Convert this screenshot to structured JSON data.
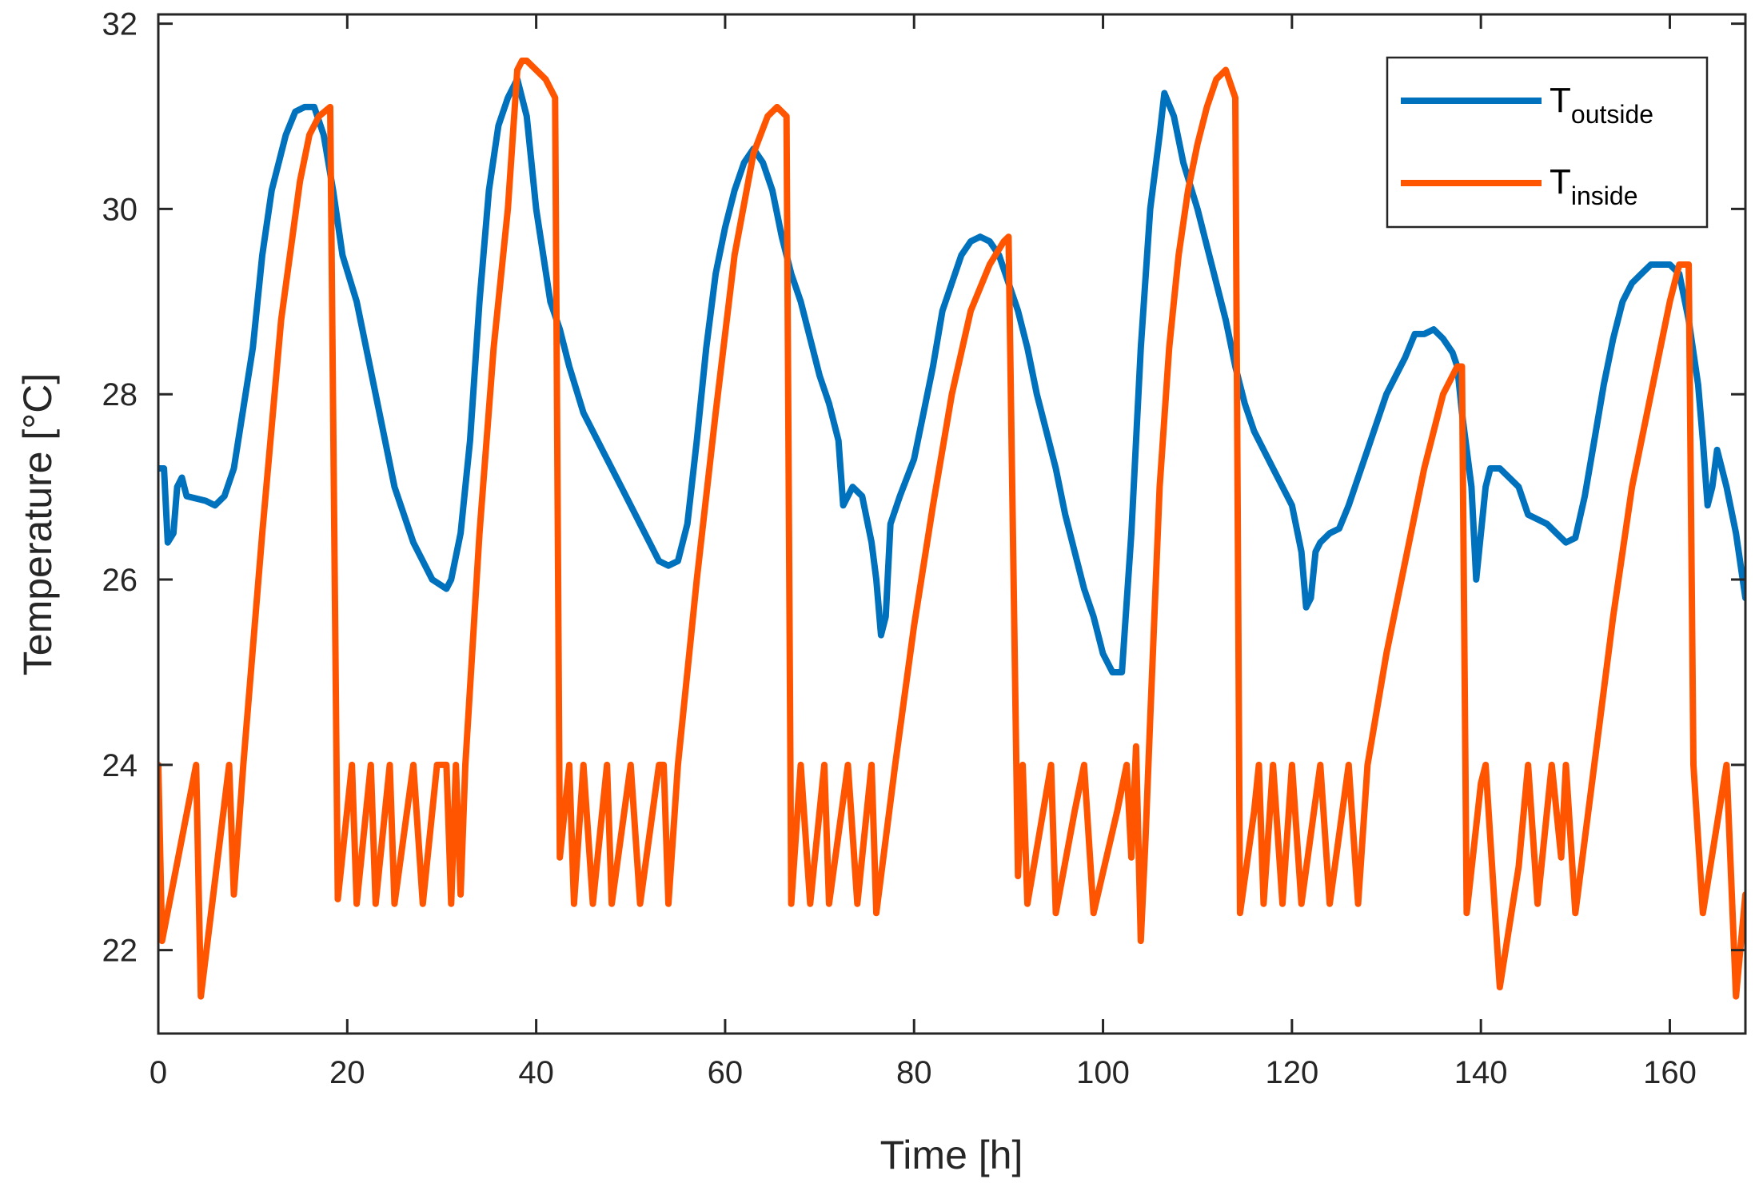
{
  "chart_data": {
    "type": "line",
    "title": "",
    "xlabel": "Time [h]",
    "ylabel": "Temperature [°C]",
    "xlim": [
      0,
      168
    ],
    "ylim": [
      21.1,
      32.1
    ],
    "xticks": [
      0,
      20,
      40,
      60,
      80,
      100,
      120,
      140,
      160
    ],
    "yticks": [
      22,
      24,
      26,
      28,
      30,
      32
    ],
    "grid": false,
    "legend_position": "top-right",
    "series": [
      {
        "name": "T_outside",
        "legend_main": "T",
        "legend_sub": "outside",
        "color": "#0072BD",
        "points": [
          [
            0,
            27.2
          ],
          [
            0.6,
            27.2
          ],
          [
            1,
            26.4
          ],
          [
            1.6,
            26.5
          ],
          [
            2,
            27.0
          ],
          [
            2.5,
            27.1
          ],
          [
            3,
            26.9
          ],
          [
            5,
            26.85
          ],
          [
            6,
            26.8
          ],
          [
            7,
            26.9
          ],
          [
            8,
            27.2
          ],
          [
            10,
            28.5
          ],
          [
            11,
            29.5
          ],
          [
            12,
            30.2
          ],
          [
            13.5,
            30.8
          ],
          [
            14.5,
            31.05
          ],
          [
            15.5,
            31.1
          ],
          [
            16.5,
            31.1
          ],
          [
            17.5,
            30.8
          ],
          [
            18.5,
            30.2
          ],
          [
            19.5,
            29.5
          ],
          [
            21,
            29.0
          ],
          [
            23,
            28.0
          ],
          [
            25,
            27.0
          ],
          [
            27,
            26.4
          ],
          [
            29,
            26.0
          ],
          [
            30.5,
            25.9
          ],
          [
            31,
            26.0
          ],
          [
            32,
            26.5
          ],
          [
            33,
            27.5
          ],
          [
            34,
            29.0
          ],
          [
            35,
            30.2
          ],
          [
            36,
            30.9
          ],
          [
            37,
            31.2
          ],
          [
            38,
            31.4
          ],
          [
            39,
            31.0
          ],
          [
            40,
            30.0
          ],
          [
            41.5,
            29.0
          ],
          [
            42.5,
            28.7
          ],
          [
            43.5,
            28.3
          ],
          [
            45,
            27.8
          ],
          [
            47,
            27.4
          ],
          [
            49,
            27.0
          ],
          [
            51,
            26.6
          ],
          [
            52,
            26.4
          ],
          [
            53,
            26.2
          ],
          [
            54,
            26.15
          ],
          [
            55,
            26.2
          ],
          [
            56,
            26.6
          ],
          [
            57,
            27.5
          ],
          [
            58,
            28.5
          ],
          [
            59,
            29.3
          ],
          [
            60,
            29.8
          ],
          [
            61,
            30.2
          ],
          [
            62,
            30.5
          ],
          [
            63,
            30.65
          ],
          [
            64,
            30.5
          ],
          [
            65,
            30.2
          ],
          [
            66,
            29.7
          ],
          [
            67,
            29.3
          ],
          [
            68,
            29.0
          ],
          [
            69,
            28.6
          ],
          [
            70,
            28.2
          ],
          [
            71,
            27.9
          ],
          [
            72,
            27.5
          ],
          [
            72.5,
            26.8
          ],
          [
            73.5,
            27.0
          ],
          [
            74.5,
            26.9
          ],
          [
            75.5,
            26.4
          ],
          [
            76,
            26.0
          ],
          [
            76.5,
            25.4
          ],
          [
            77,
            25.6
          ],
          [
            77.5,
            26.6
          ],
          [
            78.5,
            26.9
          ],
          [
            80,
            27.3
          ],
          [
            81,
            27.8
          ],
          [
            82,
            28.3
          ],
          [
            83,
            28.9
          ],
          [
            84,
            29.2
          ],
          [
            85,
            29.5
          ],
          [
            86,
            29.65
          ],
          [
            87,
            29.7
          ],
          [
            88,
            29.65
          ],
          [
            89,
            29.5
          ],
          [
            90,
            29.2
          ],
          [
            91,
            28.9
          ],
          [
            92,
            28.5
          ],
          [
            93,
            28.0
          ],
          [
            94,
            27.6
          ],
          [
            95,
            27.2
          ],
          [
            96,
            26.7
          ],
          [
            97,
            26.3
          ],
          [
            98,
            25.9
          ],
          [
            99,
            25.6
          ],
          [
            100,
            25.2
          ],
          [
            101,
            25.0
          ],
          [
            102,
            25.0
          ],
          [
            103,
            26.5
          ],
          [
            104,
            28.5
          ],
          [
            105,
            30.0
          ],
          [
            106,
            30.8
          ],
          [
            106.5,
            31.25
          ],
          [
            107.5,
            31.0
          ],
          [
            108.5,
            30.5
          ],
          [
            110,
            30.0
          ],
          [
            111,
            29.6
          ],
          [
            112,
            29.2
          ],
          [
            113,
            28.8
          ],
          [
            114,
            28.3
          ],
          [
            115,
            27.9
          ],
          [
            116,
            27.6
          ],
          [
            117,
            27.4
          ],
          [
            118,
            27.2
          ],
          [
            119,
            27.0
          ],
          [
            120,
            26.8
          ],
          [
            121,
            26.3
          ],
          [
            121.5,
            25.7
          ],
          [
            122,
            25.8
          ],
          [
            122.5,
            26.3
          ],
          [
            123,
            26.4
          ],
          [
            124,
            26.5
          ],
          [
            125,
            26.55
          ],
          [
            126,
            26.8
          ],
          [
            127,
            27.1
          ],
          [
            128,
            27.4
          ],
          [
            129,
            27.7
          ],
          [
            130,
            28.0
          ],
          [
            131,
            28.2
          ],
          [
            132,
            28.4
          ],
          [
            133,
            28.65
          ],
          [
            134,
            28.65
          ],
          [
            135,
            28.7
          ],
          [
            136,
            28.6
          ],
          [
            137,
            28.45
          ],
          [
            137.5,
            28.3
          ],
          [
            138,
            27.8
          ],
          [
            139,
            27.0
          ],
          [
            139.5,
            26.0
          ],
          [
            140,
            26.5
          ],
          [
            140.5,
            27.0
          ],
          [
            141,
            27.2
          ],
          [
            142,
            27.2
          ],
          [
            143,
            27.1
          ],
          [
            144,
            27.0
          ],
          [
            145,
            26.7
          ],
          [
            146,
            26.65
          ],
          [
            147,
            26.6
          ],
          [
            148,
            26.5
          ],
          [
            149,
            26.4
          ],
          [
            150,
            26.45
          ],
          [
            151,
            26.9
          ],
          [
            152,
            27.5
          ],
          [
            153,
            28.1
          ],
          [
            154,
            28.6
          ],
          [
            155,
            29.0
          ],
          [
            156,
            29.2
          ],
          [
            157,
            29.3
          ],
          [
            158,
            29.4
          ],
          [
            159,
            29.4
          ],
          [
            160,
            29.4
          ],
          [
            161,
            29.3
          ],
          [
            162,
            28.8
          ],
          [
            163,
            28.1
          ],
          [
            163.5,
            27.5
          ],
          [
            164,
            26.8
          ],
          [
            164.5,
            27.0
          ],
          [
            165,
            27.4
          ],
          [
            166,
            27.0
          ],
          [
            167,
            26.5
          ],
          [
            168,
            25.8
          ]
        ]
      },
      {
        "name": "T_inside",
        "legend_main": "T",
        "legend_sub": "inside",
        "color": "#FF5500",
        "points": [
          [
            0,
            24.0
          ],
          [
            0.4,
            22.1
          ],
          [
            4,
            24.0
          ],
          [
            4.5,
            21.5
          ],
          [
            7.5,
            24.0
          ],
          [
            8,
            22.6
          ],
          [
            9,
            24.0
          ],
          [
            11,
            26.5
          ],
          [
            13,
            28.8
          ],
          [
            15,
            30.3
          ],
          [
            16,
            30.8
          ],
          [
            17,
            31.0
          ],
          [
            18.2,
            31.1
          ],
          [
            19,
            22.55
          ],
          [
            20.5,
            24.0
          ],
          [
            21,
            22.5
          ],
          [
            22.5,
            24.0
          ],
          [
            23,
            22.5
          ],
          [
            24.5,
            24.0
          ],
          [
            25,
            22.5
          ],
          [
            27,
            24.0
          ],
          [
            28,
            22.5
          ],
          [
            29.5,
            24.0
          ],
          [
            30.5,
            24.0
          ],
          [
            31,
            22.5
          ],
          [
            31.5,
            24.0
          ],
          [
            32,
            22.6
          ],
          [
            32.5,
            24.0
          ],
          [
            34,
            26.5
          ],
          [
            35.5,
            28.5
          ],
          [
            37,
            30.0
          ],
          [
            38,
            31.5
          ],
          [
            38.5,
            31.6
          ],
          [
            39,
            31.6
          ],
          [
            41,
            31.4
          ],
          [
            42,
            31.2
          ],
          [
            42.5,
            23.0
          ],
          [
            43.5,
            24.0
          ],
          [
            44,
            22.5
          ],
          [
            45,
            24.0
          ],
          [
            46,
            22.5
          ],
          [
            47.5,
            24.0
          ],
          [
            48,
            22.5
          ],
          [
            50,
            24.0
          ],
          [
            51,
            22.5
          ],
          [
            53,
            24.0
          ],
          [
            53.5,
            24.0
          ],
          [
            54,
            22.5
          ],
          [
            55,
            24.0
          ],
          [
            57,
            26.0
          ],
          [
            59,
            27.8
          ],
          [
            61,
            29.5
          ],
          [
            63,
            30.6
          ],
          [
            64.5,
            31.0
          ],
          [
            65.5,
            31.1
          ],
          [
            66.5,
            31.0
          ],
          [
            67,
            22.5
          ],
          [
            68,
            24.0
          ],
          [
            69,
            22.5
          ],
          [
            70.5,
            24.0
          ],
          [
            71,
            22.5
          ],
          [
            73,
            24.0
          ],
          [
            74,
            22.5
          ],
          [
            75.5,
            24.0
          ],
          [
            76,
            22.4
          ],
          [
            78,
            24.0
          ],
          [
            80,
            25.5
          ],
          [
            82,
            26.8
          ],
          [
            84,
            28.0
          ],
          [
            86,
            28.9
          ],
          [
            88,
            29.4
          ],
          [
            89.5,
            29.65
          ],
          [
            90,
            29.7
          ],
          [
            91,
            22.8
          ],
          [
            91.5,
            24.0
          ],
          [
            92,
            22.5
          ],
          [
            94.5,
            24.0
          ],
          [
            95,
            22.4
          ],
          [
            97,
            23.5
          ],
          [
            98,
            24.0
          ],
          [
            99,
            22.4
          ],
          [
            101.5,
            23.5
          ],
          [
            102.5,
            24.0
          ],
          [
            103,
            23.0
          ],
          [
            103.5,
            24.2
          ],
          [
            104,
            22.1
          ],
          [
            104.5,
            23.2
          ],
          [
            105,
            24.5
          ],
          [
            106,
            27.0
          ],
          [
            107,
            28.5
          ],
          [
            108,
            29.5
          ],
          [
            109,
            30.2
          ],
          [
            110,
            30.7
          ],
          [
            111,
            31.1
          ],
          [
            112,
            31.4
          ],
          [
            113,
            31.5
          ],
          [
            114,
            31.2
          ],
          [
            114.5,
            22.4
          ],
          [
            116,
            23.5
          ],
          [
            116.5,
            24.0
          ],
          [
            117,
            22.5
          ],
          [
            118,
            24.0
          ],
          [
            119,
            22.5
          ],
          [
            120,
            24.0
          ],
          [
            121,
            22.5
          ],
          [
            123,
            24.0
          ],
          [
            124,
            22.5
          ],
          [
            126,
            24.0
          ],
          [
            127,
            22.5
          ],
          [
            128,
            24.0
          ],
          [
            130,
            25.2
          ],
          [
            132,
            26.2
          ],
          [
            134,
            27.2
          ],
          [
            136,
            28.0
          ],
          [
            137.5,
            28.3
          ],
          [
            138,
            28.3
          ],
          [
            138.5,
            22.4
          ],
          [
            140,
            23.8
          ],
          [
            140.5,
            24.0
          ],
          [
            141,
            23.2
          ],
          [
            142,
            21.6
          ],
          [
            144,
            22.9
          ],
          [
            145,
            24.0
          ],
          [
            146,
            22.5
          ],
          [
            147.5,
            24.0
          ],
          [
            148.5,
            23.0
          ],
          [
            149,
            24.0
          ],
          [
            150,
            22.4
          ],
          [
            152,
            24.0
          ],
          [
            154,
            25.6
          ],
          [
            156,
            27.0
          ],
          [
            158,
            28.0
          ],
          [
            160,
            29.0
          ],
          [
            161,
            29.4
          ],
          [
            162,
            29.4
          ],
          [
            162.5,
            24.0
          ],
          [
            163.5,
            22.4
          ],
          [
            166,
            24.0
          ],
          [
            167,
            21.5
          ],
          [
            168,
            22.6
          ]
        ]
      }
    ]
  }
}
